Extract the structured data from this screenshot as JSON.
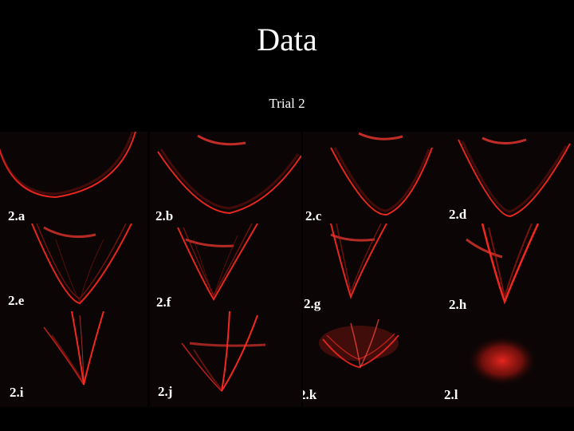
{
  "slide": {
    "title": "Data",
    "subtitle": "Trial 2"
  },
  "colors": {
    "background": "#000000",
    "text": "#ffffff",
    "curve": "#ff2a22",
    "panel_bg": "#0b0605"
  },
  "panels": [
    {
      "label": "2.a"
    },
    {
      "label": "2.b"
    },
    {
      "label": "2.c"
    },
    {
      "label": "2.d"
    },
    {
      "label": "2.e"
    },
    {
      "label": "2.f"
    },
    {
      "label": "2.g"
    },
    {
      "label": "2.h"
    },
    {
      "label": "2.i"
    },
    {
      "label": "2.j"
    },
    {
      "label": "2.k"
    },
    {
      "label": "2.l"
    }
  ]
}
